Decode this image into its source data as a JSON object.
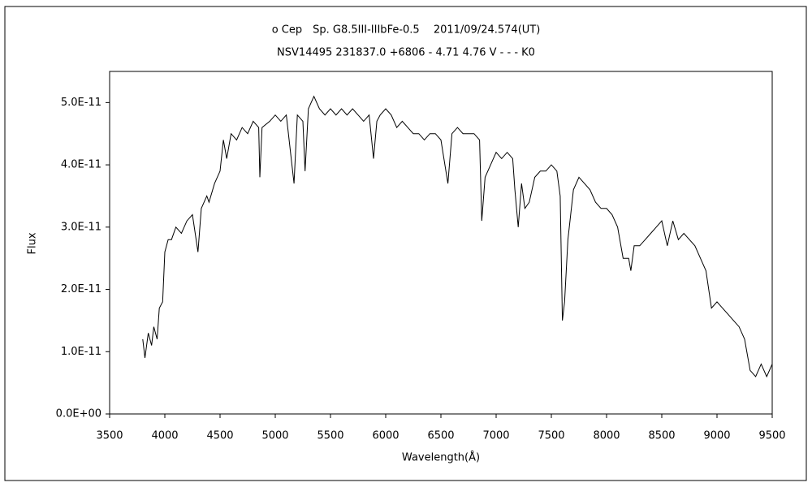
{
  "chart_data": {
    "type": "line",
    "title": "ο Cep　Sp. G8.5III-IIIbFe-0.5　 2011/09/24.574(UT)",
    "subtitle": "NSV14495 231837.0 +6806 - 4.71 4.76 V - - - K0",
    "x_label": "Wavelength(Å)",
    "y_label": "Flux",
    "xlim": [
      3500,
      9500
    ],
    "xticks": [
      3500,
      4000,
      4500,
      5000,
      5500,
      6000,
      6500,
      7000,
      7500,
      8000,
      8500,
      9000,
      9500
    ],
    "ylim": [
      0,
      5.5e-11
    ],
    "yticks": [
      {
        "value": 0,
        "label": "0.0E+00"
      },
      {
        "value": 1e-11,
        "label": "1.0E-11"
      },
      {
        "value": 2e-11,
        "label": "2.0E-11"
      },
      {
        "value": 3e-11,
        "label": "3.0E-11"
      },
      {
        "value": 4e-11,
        "label": "4.0E-11"
      },
      {
        "value": 5e-11,
        "label": "5.0E-11"
      }
    ],
    "x": [
      3800,
      3820,
      3850,
      3880,
      3900,
      3930,
      3950,
      3980,
      4000,
      4030,
      4060,
      4100,
      4150,
      4200,
      4250,
      4300,
      4330,
      4380,
      4400,
      4450,
      4500,
      4530,
      4560,
      4600,
      4650,
      4700,
      4750,
      4800,
      4850,
      4860,
      4880,
      4950,
      5000,
      5050,
      5100,
      5170,
      5200,
      5250,
      5270,
      5300,
      5350,
      5400,
      5450,
      5500,
      5550,
      5600,
      5650,
      5700,
      5750,
      5800,
      5850,
      5890,
      5920,
      5950,
      6000,
      6050,
      6100,
      6150,
      6200,
      6250,
      6300,
      6350,
      6400,
      6450,
      6500,
      6563,
      6600,
      6650,
      6700,
      6750,
      6800,
      6850,
      6870,
      6900,
      6950,
      7000,
      7050,
      7100,
      7150,
      7170,
      7200,
      7230,
      7260,
      7300,
      7350,
      7400,
      7450,
      7500,
      7550,
      7580,
      7600,
      7620,
      7650,
      7700,
      7750,
      7800,
      7850,
      7900,
      7950,
      8000,
      8050,
      8100,
      8150,
      8200,
      8220,
      8250,
      8300,
      8350,
      8400,
      8450,
      8500,
      8550,
      8600,
      8650,
      8700,
      8750,
      8800,
      8850,
      8900,
      8950,
      9000,
      9050,
      9100,
      9150,
      9200,
      9250,
      9300,
      9350,
      9400,
      9450,
      9500
    ],
    "series": [
      {
        "color": "#000000",
        "values": [
          1.2e-11,
          9e-12,
          1.3e-11,
          1.1e-11,
          1.4e-11,
          1.2e-11,
          1.7e-11,
          1.8e-11,
          2.6e-11,
          2.8e-11,
          2.8e-11,
          3e-11,
          2.9e-11,
          3.1e-11,
          3.2e-11,
          2.6e-11,
          3.3e-11,
          3.5e-11,
          3.4e-11,
          3.7e-11,
          3.9e-11,
          4.4e-11,
          4.1e-11,
          4.5e-11,
          4.4e-11,
          4.6e-11,
          4.5e-11,
          4.7e-11,
          4.6e-11,
          3.8e-11,
          4.6e-11,
          4.7e-11,
          4.8e-11,
          4.7e-11,
          4.8e-11,
          3.7e-11,
          4.8e-11,
          4.7e-11,
          3.9e-11,
          4.9e-11,
          5.1e-11,
          4.9e-11,
          4.8e-11,
          4.9e-11,
          4.8e-11,
          4.9e-11,
          4.8e-11,
          4.9e-11,
          4.8e-11,
          4.7e-11,
          4.8e-11,
          4.1e-11,
          4.7e-11,
          4.8e-11,
          4.9e-11,
          4.8e-11,
          4.6e-11,
          4.7e-11,
          4.6e-11,
          4.5e-11,
          4.5e-11,
          4.4e-11,
          4.5e-11,
          4.5e-11,
          4.4e-11,
          3.7e-11,
          4.5e-11,
          4.6e-11,
          4.5e-11,
          4.5e-11,
          4.5e-11,
          4.4e-11,
          3.1e-11,
          3.8e-11,
          4e-11,
          4.2e-11,
          4.1e-11,
          4.2e-11,
          4.1e-11,
          3.6e-11,
          3e-11,
          3.7e-11,
          3.3e-11,
          3.4e-11,
          3.8e-11,
          3.9e-11,
          3.9e-11,
          4e-11,
          3.9e-11,
          3.5e-11,
          1.5e-11,
          1.8e-11,
          2.8e-11,
          3.6e-11,
          3.8e-11,
          3.7e-11,
          3.6e-11,
          3.4e-11,
          3.3e-11,
          3.3e-11,
          3.2e-11,
          3e-11,
          2.5e-11,
          2.5e-11,
          2.3e-11,
          2.7e-11,
          2.7e-11,
          2.8e-11,
          2.9e-11,
          3e-11,
          3.1e-11,
          2.7e-11,
          3.1e-11,
          2.8e-11,
          2.9e-11,
          2.8e-11,
          2.7e-11,
          2.5e-11,
          2.3e-11,
          1.7e-11,
          1.8e-11,
          1.7e-11,
          1.6e-11,
          1.5e-11,
          1.4e-11,
          1.2e-11,
          7e-12,
          6e-12,
          8e-12,
          6e-12,
          8e-12
        ]
      }
    ]
  }
}
